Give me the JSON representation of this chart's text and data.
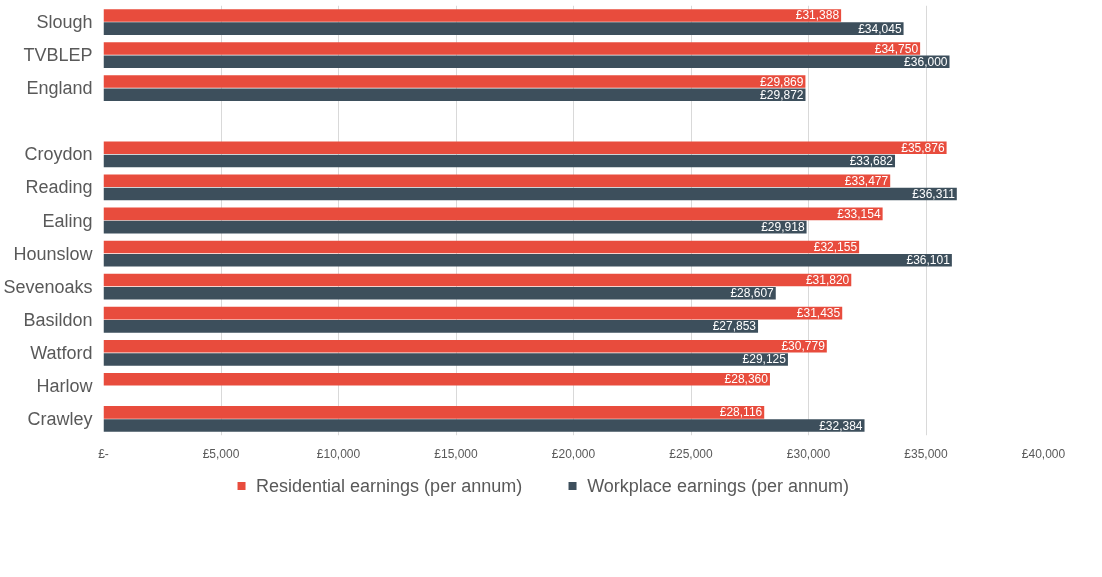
{
  "chart_data": {
    "type": "bar",
    "orientation": "horizontal",
    "categories": [
      "Slough",
      "TVBLEP",
      "England",
      null,
      "Croydon",
      "Reading",
      "Ealing",
      "Hounslow",
      "Sevenoaks",
      "Basildon",
      "Watford",
      "Harlow",
      "Crawley"
    ],
    "series": [
      {
        "name": "Residential earnings (per annum)",
        "color": "#e84c3d",
        "values": [
          31388,
          34750,
          29869,
          null,
          35876,
          33477,
          33154,
          32155,
          31820,
          31435,
          30779,
          28360,
          28116
        ],
        "value_labels": [
          "£31,388",
          "£34,750",
          "£29,869",
          null,
          "£35,876",
          "£33,477",
          "£33,154",
          "£32,155",
          "£31,820",
          "£31,435",
          "£30,779",
          "£28,360",
          "£28,116"
        ]
      },
      {
        "name": "Workplace earnings (per annum)",
        "color": "#3d4f5c",
        "values": [
          34045,
          36000,
          29872,
          null,
          33682,
          36311,
          29918,
          36101,
          28607,
          27853,
          29125,
          null,
          32384
        ],
        "value_labels": [
          "£34,045",
          "£36,000",
          "£29,872",
          null,
          "£33,682",
          "£36,311",
          "£29,918",
          "£36,101",
          "£28,607",
          "£27,853",
          "£29,125",
          null,
          "£32,384"
        ]
      }
    ],
    "xlim": [
      0,
      40000
    ],
    "xticks": [
      {
        "value": 0,
        "label": "£-"
      },
      {
        "value": 5000,
        "label": "£5,000"
      },
      {
        "value": 10000,
        "label": "£10,000"
      },
      {
        "value": 15000,
        "label": "£15,000"
      },
      {
        "value": 20000,
        "label": "£20,000"
      },
      {
        "value": 25000,
        "label": "£25,000"
      },
      {
        "value": 30000,
        "label": "£30,000"
      },
      {
        "value": 35000,
        "label": "£35,000"
      },
      {
        "value": 40000,
        "label": "£40,000"
      }
    ],
    "grid": "x",
    "legend": "bottom"
  }
}
